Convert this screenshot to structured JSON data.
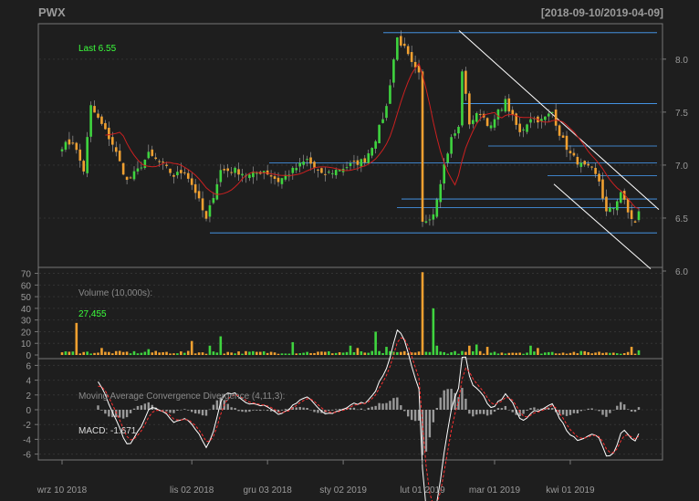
{
  "header": {
    "ticker": "PWX",
    "range": "[2018-09-10/2019-04-09]"
  },
  "colors": {
    "background": "#1e1e1e",
    "panel_border": "#777777",
    "up": "#3fd43f",
    "down": "#f0a030",
    "ma_line": "#cc2020",
    "trend_lines": "#ffffff",
    "support_lines": "#4aa3ff",
    "macd_line": "#ffffff",
    "signal_line": "#ff3030",
    "histogram": "#9a9a9a",
    "highlight_text": "#3cff3c",
    "label_text": "#9a9a9a"
  },
  "price_panel": {
    "last_label": "Last 6.55",
    "y_ticks": [
      "8.0",
      "7.5",
      "7.0",
      "6.5",
      "6.0"
    ]
  },
  "volume_panel": {
    "title": "Volume (10,000s):",
    "last_value": "27,455",
    "y_ticks": [
      "70",
      "60",
      "50",
      "40",
      "30",
      "20",
      "10",
      "0"
    ]
  },
  "macd_panel": {
    "title": "Moving Average Convergence Divergence (4,11,3):",
    "macd_label": "MACD: -1.671",
    "y_ticks": [
      "6",
      "4",
      "2",
      "0",
      "-2",
      "-4",
      "-6"
    ]
  },
  "x_axis": {
    "ticks": [
      "wrz 10 2018",
      "lis 02 2018",
      "gru 03 2018",
      "sty 02 2019",
      "lut 01 2019",
      "mar 01 2019",
      "kwi 01 2019"
    ]
  },
  "chart_data": {
    "type": "candlestick",
    "title": "PWX",
    "date_range": "[2018-09-10/2019-04-09]",
    "price_ylim": [
      6.0,
      8.3
    ],
    "volume_ylim": [
      0,
      70
    ],
    "macd_ylim": [
      -7,
      7
    ],
    "support_levels": [
      8.25,
      7.58,
      7.18,
      7.02,
      6.9,
      6.68,
      6.6,
      6.36
    ],
    "price_anchors": [
      [
        0,
        7.18
      ],
      [
        3,
        7.22
      ],
      [
        6,
        6.95
      ],
      [
        8,
        7.55
      ],
      [
        11,
        7.38
      ],
      [
        14,
        7.2
      ],
      [
        18,
        6.85
      ],
      [
        21,
        6.95
      ],
      [
        24,
        7.1
      ],
      [
        28,
        7.0
      ],
      [
        31,
        6.9
      ],
      [
        34,
        6.95
      ],
      [
        37,
        6.75
      ],
      [
        40,
        6.48
      ],
      [
        44,
        6.95
      ],
      [
        48,
        6.95
      ],
      [
        52,
        6.9
      ],
      [
        56,
        6.95
      ],
      [
        60,
        6.85
      ],
      [
        64,
        6.95
      ],
      [
        68,
        7.05
      ],
      [
        72,
        6.9
      ],
      [
        76,
        6.95
      ],
      [
        80,
        7.0
      ],
      [
        84,
        7.05
      ],
      [
        87,
        7.25
      ],
      [
        90,
        7.55
      ],
      [
        92,
        8.0
      ],
      [
        93,
        8.2
      ],
      [
        95,
        8.1
      ],
      [
        97,
        7.95
      ],
      [
        99,
        7.85
      ],
      [
        100,
        6.45
      ],
      [
        103,
        6.55
      ],
      [
        106,
        7.0
      ],
      [
        108,
        7.25
      ],
      [
        110,
        7.35
      ],
      [
        111,
        7.9
      ],
      [
        113,
        7.4
      ],
      [
        116,
        7.5
      ],
      [
        119,
        7.35
      ],
      [
        121,
        7.5
      ],
      [
        123,
        7.6
      ],
      [
        125,
        7.45
      ],
      [
        127,
        7.3
      ],
      [
        130,
        7.45
      ],
      [
        133,
        7.42
      ],
      [
        136,
        7.5
      ],
      [
        138,
        7.3
      ],
      [
        141,
        7.1
      ],
      [
        144,
        7.0
      ],
      [
        147,
        6.95
      ],
      [
        149,
        6.85
      ],
      [
        151,
        6.55
      ],
      [
        153,
        6.6
      ],
      [
        155,
        6.75
      ],
      [
        157,
        6.55
      ],
      [
        159,
        6.45
      ],
      [
        160,
        6.55
      ]
    ],
    "volume_spikes": [
      [
        4,
        27.5
      ],
      [
        11,
        6
      ],
      [
        24,
        5
      ],
      [
        36,
        12
      ],
      [
        41,
        8
      ],
      [
        44,
        16
      ],
      [
        64,
        11
      ],
      [
        80,
        8
      ],
      [
        82,
        6
      ],
      [
        87,
        20
      ],
      [
        90,
        7
      ],
      [
        100,
        72
      ],
      [
        103,
        40
      ],
      [
        104,
        8
      ],
      [
        113,
        8
      ],
      [
        115,
        9
      ],
      [
        118,
        7
      ],
      [
        130,
        8
      ],
      [
        132,
        6
      ],
      [
        158,
        7
      ],
      [
        160,
        4
      ]
    ],
    "volume_last": 27455,
    "macd_last": -1.671
  }
}
